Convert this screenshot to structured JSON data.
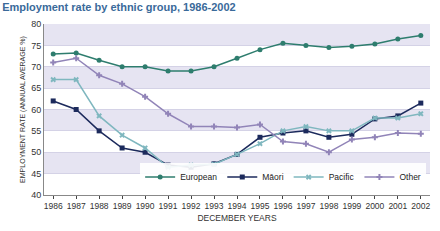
{
  "chart_data": {
    "type": "line",
    "title": "Employment rate by ethnic group, 1986-2002",
    "x_label": "DECEMBER YEARS",
    "y_label": "EMPLOYMENT RATE (ANNUAL AVERAGE %)",
    "categories": [
      "1986",
      "1987",
      "1988",
      "1989",
      "1990",
      "1991",
      "1992",
      "1993",
      "1994",
      "1995",
      "1996",
      "1997",
      "1998",
      "1999",
      "2000",
      "2001",
      "2002"
    ],
    "series": [
      {
        "name": "European",
        "color": "#2e7d6e",
        "marker": "circle",
        "values": [
          73,
          73.2,
          71.5,
          70,
          70,
          69,
          69,
          70,
          72,
          74,
          75.5,
          75,
          74.5,
          74.8,
          75.3,
          76.5,
          77.3
        ]
      },
      {
        "name": "Māori",
        "color": "#1c2a5c",
        "marker": "square",
        "values": [
          62,
          60,
          55,
          51,
          50,
          47,
          46.5,
          47.3,
          49.5,
          53.5,
          54.5,
          55,
          53.5,
          54.2,
          57.8,
          58.5,
          61.5
        ]
      },
      {
        "name": "Pacific",
        "color": "#7fb7bf",
        "marker": "x",
        "values": [
          67,
          67,
          58.5,
          54,
          51,
          46.5,
          47,
          47.2,
          49.5,
          52,
          55,
          56,
          55,
          55,
          58,
          58,
          59
        ]
      },
      {
        "name": "Other",
        "color": "#9184b8",
        "marker": "cross",
        "values": [
          71,
          72,
          68,
          66,
          63,
          59,
          56,
          56,
          55.8,
          56.5,
          52.5,
          52,
          50,
          53,
          53.5,
          54.5,
          54.3
        ]
      }
    ],
    "ylim": [
      40,
      80
    ],
    "yticks": [
      40,
      45,
      50,
      55,
      60,
      65,
      70,
      75,
      80
    ],
    "grid": true,
    "legend": "lower right"
  }
}
